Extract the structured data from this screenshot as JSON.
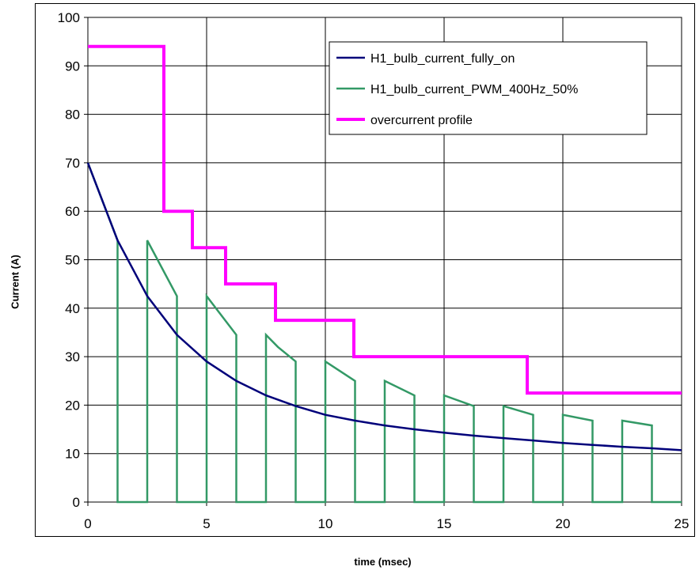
{
  "chart_data": {
    "type": "line",
    "xlabel": "time (msec)",
    "ylabel": "Current (A)",
    "xlim": [
      0,
      25
    ],
    "ylim": [
      0,
      100
    ],
    "x_ticks": [
      "0",
      "5",
      "10",
      "15",
      "20",
      "25"
    ],
    "y_ticks": [
      "0",
      "10",
      "20",
      "30",
      "40",
      "50",
      "60",
      "70",
      "80",
      "90",
      "100"
    ],
    "grid": true,
    "legend_position": "top-right",
    "series": [
      {
        "name": "H1_bulb_current_fully_on",
        "color": "#00007a",
        "x": [
          0,
          1.25,
          2.5,
          3.75,
          5,
          6.25,
          7.5,
          8.75,
          10,
          11.25,
          12.5,
          13.75,
          15,
          16.25,
          17.5,
          18.75,
          20,
          21.25,
          22.5,
          23.75,
          25
        ],
        "y": [
          70,
          54,
          42.5,
          34.5,
          29,
          25,
          22,
          19.8,
          18,
          16.8,
          15.8,
          15,
          14.3,
          13.7,
          13.2,
          12.7,
          12.2,
          11.8,
          11.4,
          11.1,
          10.7
        ]
      },
      {
        "name": "H1_bulb_current_PWM_400Hz_50%",
        "color": "#339966",
        "x": [
          0,
          1.25,
          1.25,
          2.5,
          2.5,
          3.75,
          3.75,
          5,
          5,
          6.25,
          6.25,
          7.5,
          7.5,
          8,
          8.75,
          8.75,
          10,
          10,
          11.25,
          11.25,
          12.5,
          12.5,
          13.75,
          13.75,
          15,
          15,
          16.25,
          16.25,
          17.5,
          17.5,
          18.75,
          18.75,
          20,
          20,
          21.25,
          21.25,
          22.5,
          22.5,
          23.75,
          23.75,
          25
        ],
        "y": [
          70,
          54,
          0,
          0,
          54,
          42.5,
          0,
          0,
          42.5,
          34.5,
          0,
          0,
          34.5,
          32,
          29,
          0,
          0,
          29,
          25,
          0,
          0,
          25,
          22,
          0,
          0,
          22,
          19.8,
          0,
          0,
          19.8,
          18,
          0,
          0,
          18,
          16.8,
          0,
          0,
          16.8,
          15.8,
          0,
          0
        ]
      },
      {
        "name": "overcurrent profile",
        "color": "#ff00ff",
        "x": [
          0,
          3.2,
          3.2,
          4.4,
          4.4,
          5.8,
          5.8,
          7.9,
          7.9,
          11.2,
          11.2,
          18.5,
          18.5,
          25
        ],
        "y": [
          94,
          94,
          60,
          60,
          52.5,
          52.5,
          45,
          45,
          37.5,
          37.5,
          30,
          30,
          22.5,
          22.5
        ]
      }
    ]
  }
}
